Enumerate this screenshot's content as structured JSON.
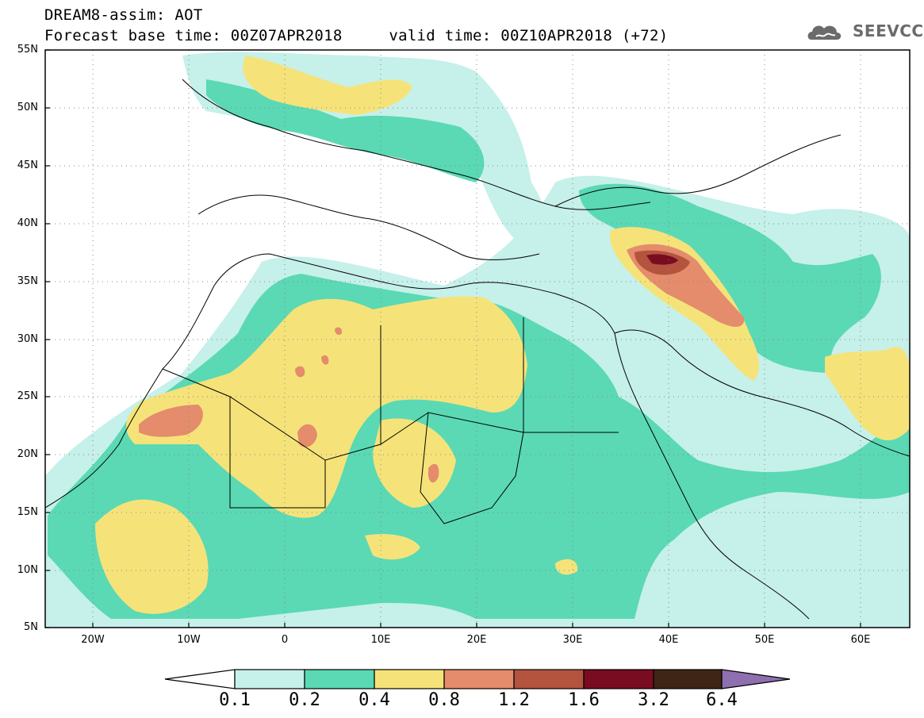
{
  "title": {
    "line1": "DREAM8-assim: AOT",
    "line2": "Forecast base time: 00Z07APR2018     valid time: 00Z10APR2018 (+72)"
  },
  "logo": {
    "text": "SEEVCCC",
    "icon": "cloud-icon"
  },
  "map": {
    "lon_range": [
      -25,
      65
    ],
    "lat_range": [
      5,
      55
    ],
    "lon_ticks": [
      "20W",
      "10W",
      "0",
      "10E",
      "20E",
      "30E",
      "40E",
      "50E",
      "60E"
    ],
    "lat_ticks": [
      "55N",
      "50N",
      "45N",
      "40N",
      "35N",
      "30N",
      "25N",
      "20N",
      "15N",
      "10N",
      "5N"
    ],
    "grid": true
  },
  "colorbar": {
    "labels": [
      "0.1",
      "0.2",
      "0.4",
      "0.8",
      "1.2",
      "1.6",
      "3.2",
      "6.4"
    ],
    "colors": [
      "#c6f0ea",
      "#5ad9b4",
      "#f5e37a",
      "#e48c6c",
      "#b4533e",
      "#7a0c22",
      "#3f2516",
      "#8e6fb0"
    ]
  }
}
